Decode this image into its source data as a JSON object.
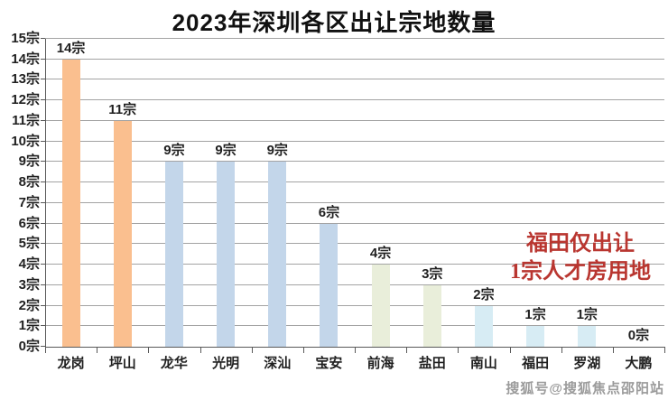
{
  "chart_data": {
    "type": "bar",
    "title": "2023年深圳各区出让宗地数量",
    "categories": [
      "龙岗",
      "坪山",
      "龙华",
      "光明",
      "深汕",
      "宝安",
      "前海",
      "盐田",
      "南山",
      "福田",
      "罗湖",
      "大鹏"
    ],
    "values": [
      14,
      11,
      9,
      9,
      9,
      6,
      4,
      3,
      2,
      1,
      1,
      0
    ],
    "data_labels": [
      "14宗",
      "11宗",
      "9宗",
      "9宗",
      "9宗",
      "6宗",
      "4宗",
      "3宗",
      "2宗",
      "1宗",
      "1宗",
      "0宗"
    ],
    "unit": "宗",
    "ylim": [
      0,
      15
    ],
    "ytick_step": 1,
    "grid": true,
    "legend": "none",
    "bar_colors": [
      "#FABF8F",
      "#FABF8F",
      "#C3D6EA",
      "#C3D6EA",
      "#C3D6EA",
      "#C3D6EA",
      "#E9EEDA",
      "#E9EEDA",
      "#D7ECF4",
      "#D7ECF4",
      "#D7ECF4",
      "#D7ECF4"
    ]
  },
  "annotation": {
    "line1": "福田仅出让",
    "line2": "1宗人才房用地",
    "color": "#B93630"
  },
  "watermark": "搜狐号@搜狐焦点邵阳站"
}
